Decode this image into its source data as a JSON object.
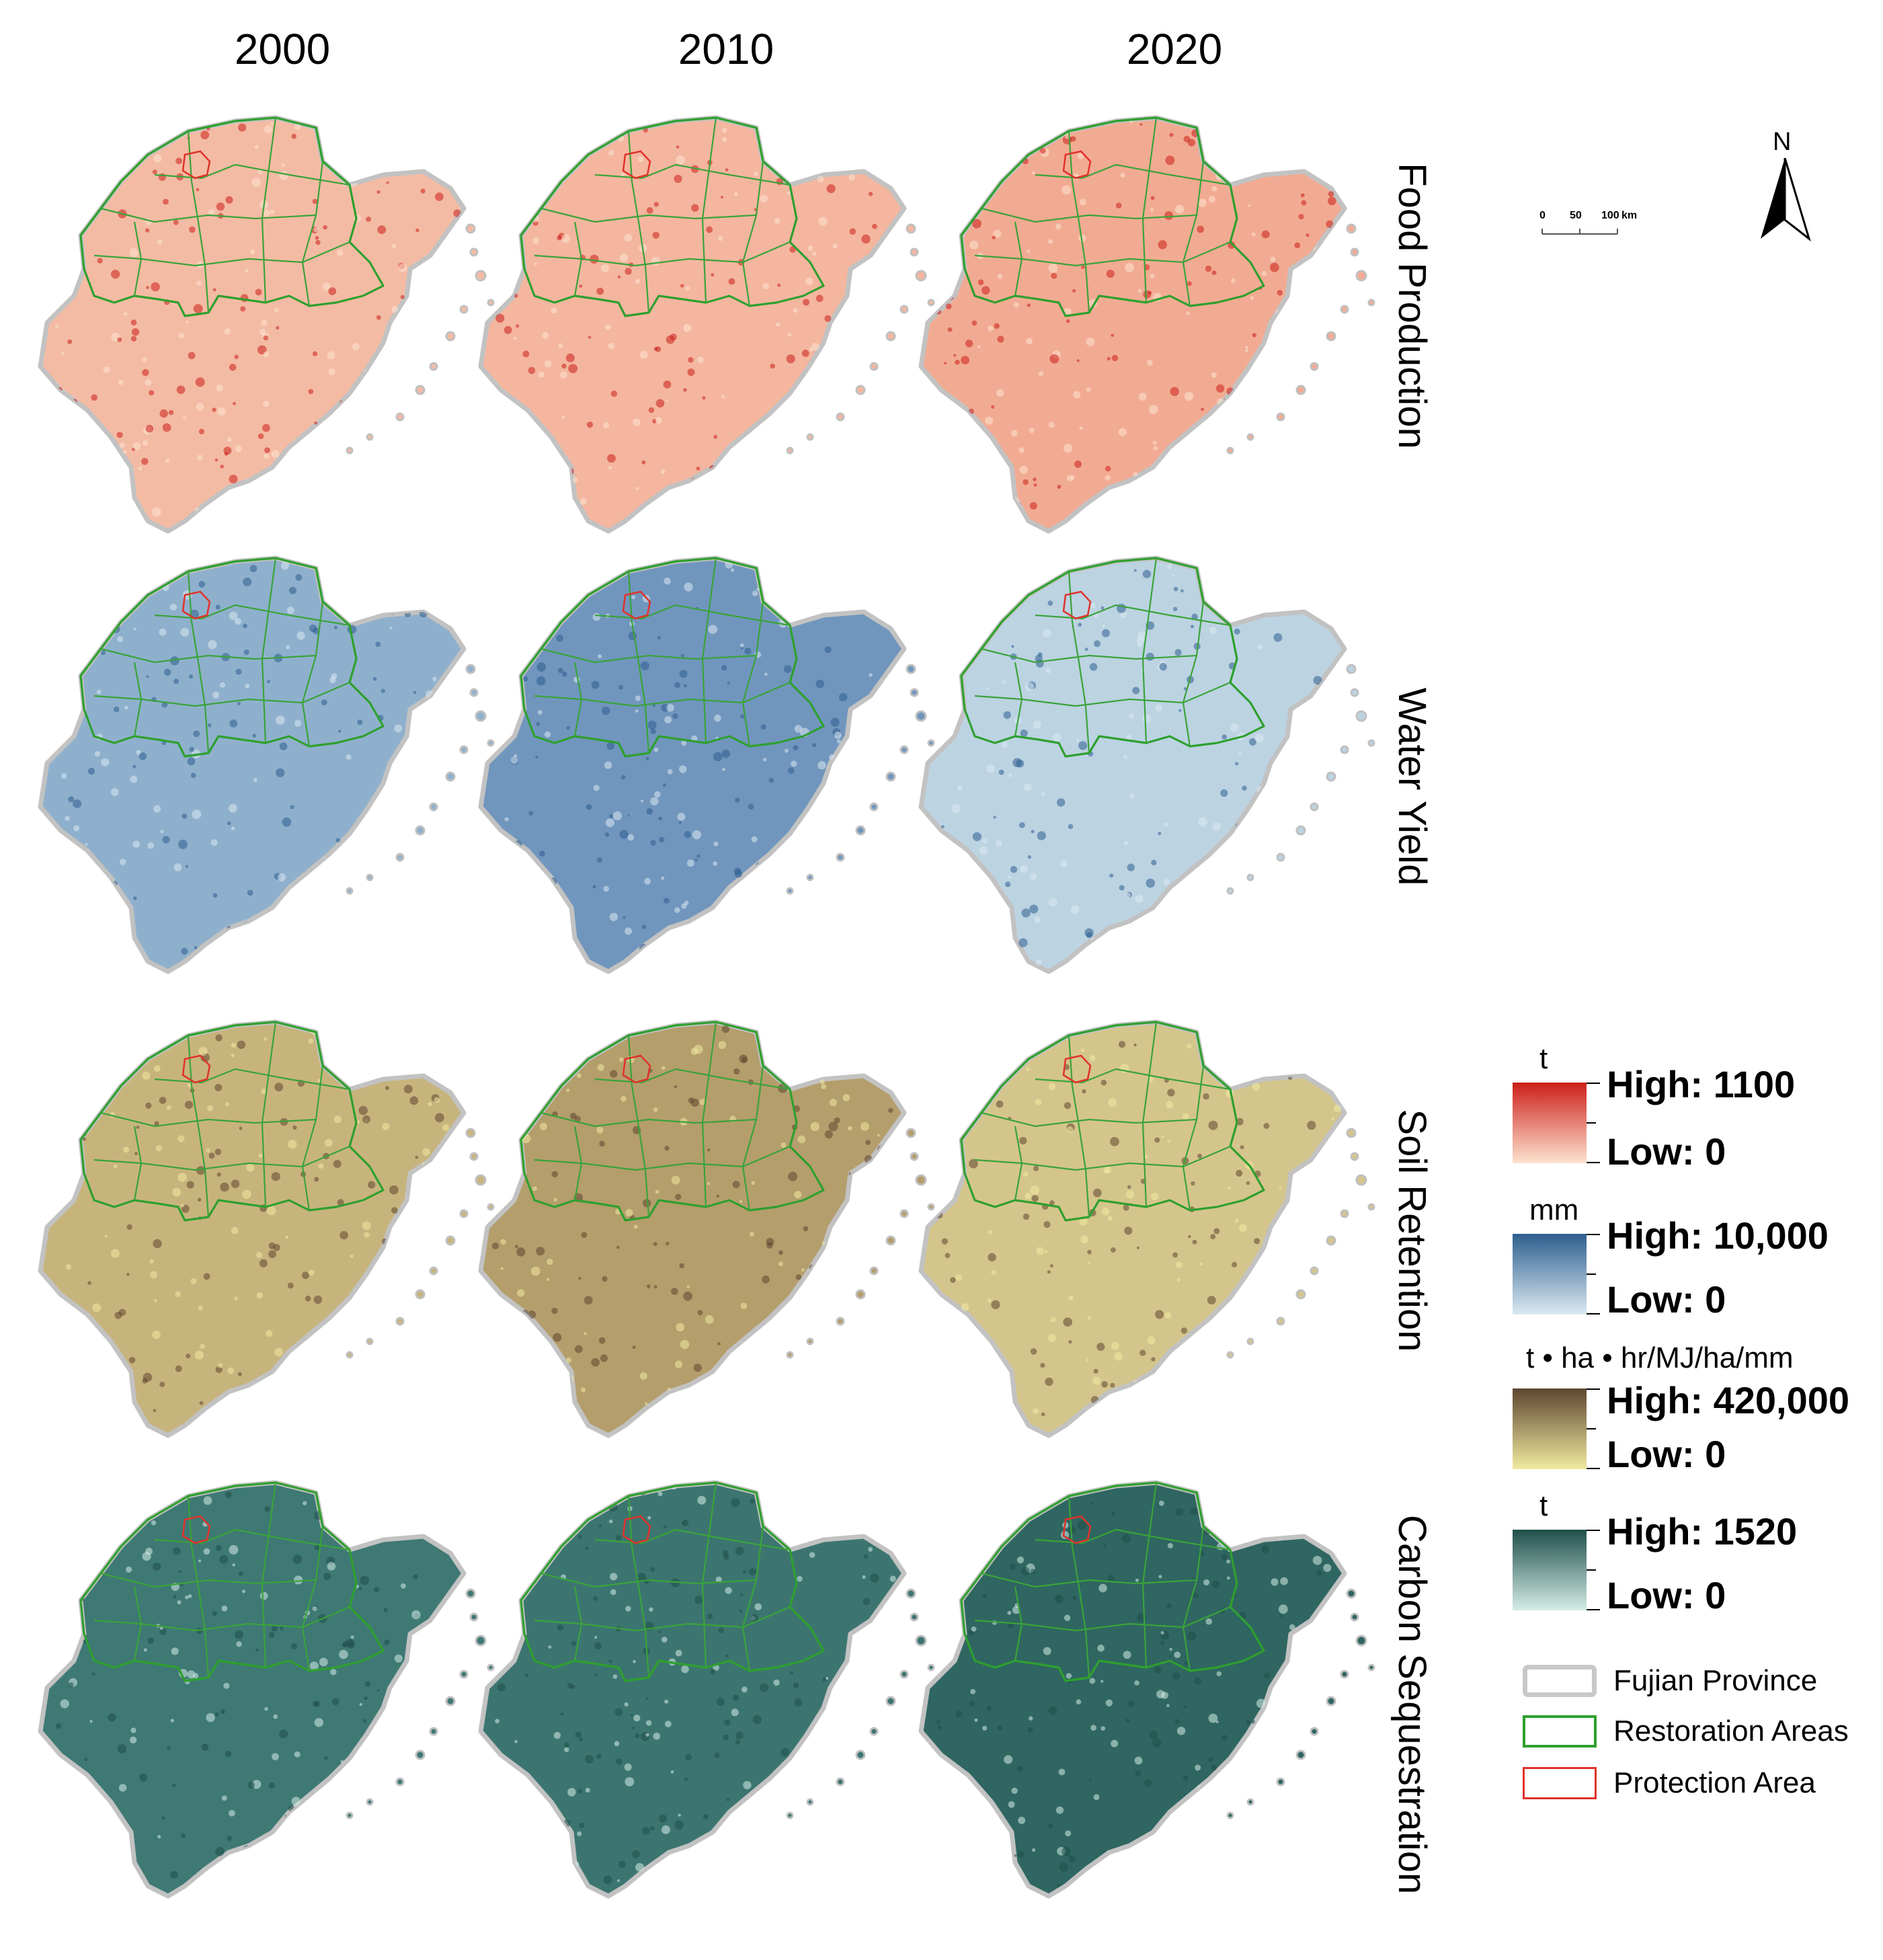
{
  "years": [
    "2000",
    "2010",
    "2020"
  ],
  "rows": [
    {
      "label": "Food Production"
    },
    {
      "label": "Water Yield"
    },
    {
      "label": "Soil Retention"
    },
    {
      "label": "Carbon Sequestration"
    }
  ],
  "legend": {
    "food": {
      "unit": "t",
      "high": "High: 1100",
      "low": "Low: 0",
      "color_high": "#cc1f1a",
      "color_low": "#fde3cf"
    },
    "water": {
      "unit": "mm",
      "high": "High: 10,000",
      "low": "Low: 0",
      "color_high": "#2e5f8f",
      "color_low": "#dbe9f2"
    },
    "soil": {
      "unit": "t • ha • hr/MJ/ha/mm",
      "high": "High: 420,000",
      "low": "Low: 0",
      "color_high": "#5e4630",
      "color_low": "#f1eaa0"
    },
    "carbon": {
      "unit": "t",
      "high": "High: 1520",
      "low": "Low: 0",
      "color_high": "#1f4f4a",
      "color_low": "#d5ece7"
    },
    "boundaries": [
      {
        "label": "Fujian Province",
        "color": "#c8c8c8"
      },
      {
        "label": "Restoration Areas",
        "color": "#2ea02e"
      },
      {
        "label": "Protection Area",
        "color": "#e0322a"
      }
    ]
  },
  "scale_bar": {
    "ticks": [
      "0",
      "50",
      "100"
    ],
    "unit": "km"
  },
  "north_arrow": {
    "label": "N"
  },
  "map_fills": [
    [
      "#f4bba4",
      "#f4b69f",
      "#f2ab93"
    ],
    [
      "#8fb0cc",
      "#7196bd",
      "#bcd3e2"
    ],
    [
      "#c7b47d",
      "#b49e6c",
      "#d4c58c"
    ],
    [
      "#3f7974",
      "#3c7570",
      "#2f6661"
    ]
  ]
}
